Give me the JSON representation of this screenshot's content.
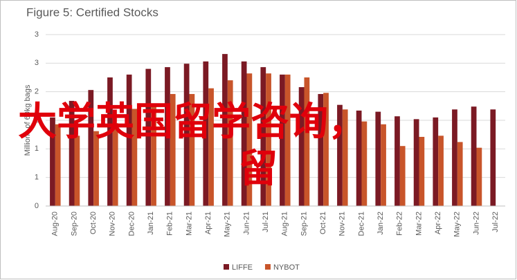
{
  "chart_data": {
    "type": "bar",
    "title": "Figure 5: Certified Stocks",
    "y_label": "Millions of 60kg bags",
    "categories": [
      "Aug-20",
      "Sep-20",
      "Oct-20",
      "Nov-20",
      "Dec-20",
      "Jan-21",
      "Feb-21",
      "Mar-21",
      "Apr-21",
      "May-21",
      "Jun-21",
      "Jul-21",
      "Aug-21",
      "Sep-21",
      "Oct-21",
      "Nov-21",
      "Dec-21",
      "Jan-22",
      "Feb-22",
      "Mar-22",
      "Apr-22",
      "May-22",
      "Jun-22",
      "Jul-22"
    ],
    "series": [
      {
        "name": "LIFFE",
        "color": "#7b1a24",
        "values": [
          1.55,
          1.84,
          2.03,
          2.25,
          2.3,
          2.4,
          2.43,
          2.49,
          2.53,
          2.66,
          2.53,
          2.43,
          2.3,
          2.08,
          1.96,
          1.77,
          1.67,
          1.65,
          1.57,
          1.52,
          1.55,
          1.69,
          1.74,
          1.69
        ]
      },
      {
        "name": "NYBOT",
        "color": "#c8552a",
        "values": [
          1.43,
          1.23,
          1.31,
          1.45,
          1.7,
          1.75,
          1.96,
          1.96,
          2.06,
          2.2,
          2.32,
          2.32,
          2.3,
          2.25,
          1.98,
          1.69,
          1.48,
          1.43,
          1.05,
          1.21,
          1.23,
          1.12,
          1.02,
          null
        ]
      }
    ],
    "ylim": [
      0,
      3
    ],
    "yticks": [
      0,
      {
        "value": 0.5,
        "label": "1"
      },
      1,
      {
        "value": 1.5,
        "label": "2"
      },
      2,
      {
        "value": 2.5,
        "label": "3"
      },
      3
    ],
    "grid": true,
    "legend": "bottom",
    "watermark": [
      "大学英国留学咨询，",
      "留"
    ]
  }
}
